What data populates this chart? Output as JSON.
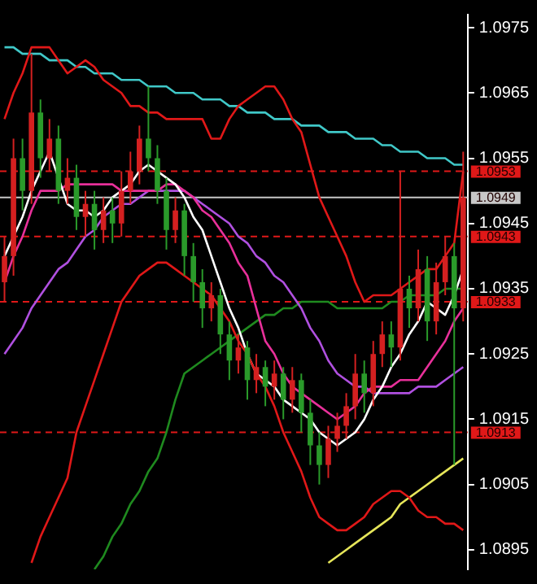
{
  "chart_data": {
    "type": "candlestick",
    "categories": [
      null,
      null,
      null,
      null,
      null,
      null,
      null,
      null,
      null,
      null,
      null,
      null,
      null,
      null,
      null,
      null,
      null,
      null,
      null,
      null,
      null,
      null,
      null,
      null,
      null,
      null,
      null,
      null,
      null,
      null,
      null,
      null,
      null,
      null,
      null,
      null,
      null,
      null,
      null,
      null,
      null,
      null,
      null,
      null,
      null,
      null,
      null,
      null,
      null,
      null,
      null,
      null
    ],
    "ohlc": [
      [
        1.0936,
        1.0943,
        1.0933,
        1.094
      ],
      [
        1.094,
        1.0958,
        1.0937,
        1.0955
      ],
      [
        1.0955,
        1.0958,
        1.0947,
        1.095
      ],
      [
        1.095,
        1.0971,
        1.0948,
        1.0962
      ],
      [
        1.0962,
        1.0964,
        1.0952,
        1.0955
      ],
      [
        1.0955,
        1.0961,
        1.0953,
        1.0958
      ],
      [
        1.0958,
        1.096,
        1.0948,
        1.095
      ],
      [
        1.095,
        1.0955,
        1.0948,
        1.0952
      ],
      [
        1.0952,
        1.0954,
        1.0944,
        1.0946
      ],
      [
        1.0946,
        1.095,
        1.0943,
        1.0948
      ],
      [
        1.0948,
        1.095,
        1.0941,
        1.0944
      ],
      [
        1.0944,
        1.0949,
        1.0942,
        1.0947
      ],
      [
        1.0947,
        1.0949,
        1.0942,
        1.0945
      ],
      [
        1.0945,
        1.0953,
        1.0943,
        1.095
      ],
      [
        1.095,
        1.0956,
        1.0948,
        1.0953
      ],
      [
        1.0953,
        1.096,
        1.0951,
        1.0958
      ],
      [
        1.0958,
        1.0966,
        1.0953,
        1.0955
      ],
      [
        1.0955,
        1.0957,
        1.0948,
        1.095
      ],
      [
        1.095,
        1.0952,
        1.0941,
        1.0944
      ],
      [
        1.0944,
        1.0949,
        1.0942,
        1.0947
      ],
      [
        1.0947,
        1.0948,
        1.0937,
        1.094
      ],
      [
        1.094,
        1.0942,
        1.0933,
        1.0936
      ],
      [
        1.0936,
        1.0938,
        1.0929,
        1.0932
      ],
      [
        1.0932,
        1.0936,
        1.093,
        1.0934
      ],
      [
        1.0934,
        1.0935,
        1.0925,
        1.0928
      ],
      [
        1.0928,
        1.093,
        1.0921,
        1.0924
      ],
      [
        1.0924,
        1.0928,
        1.0922,
        1.0926
      ],
      [
        1.0926,
        1.0927,
        1.0918,
        1.0921
      ],
      [
        1.0921,
        1.0925,
        1.0919,
        1.0923
      ],
      [
        1.0923,
        1.0924,
        1.0917,
        1.092
      ],
      [
        1.092,
        1.0924,
        1.0918,
        1.0922
      ],
      [
        1.0922,
        1.0923,
        1.0915,
        1.0918
      ],
      [
        1.0918,
        1.0923,
        1.0916,
        1.0921
      ],
      [
        1.0921,
        1.0922,
        1.0913,
        1.0916
      ],
      [
        1.0916,
        1.0918,
        1.0908,
        1.0911
      ],
      [
        1.0911,
        1.0913,
        1.0905,
        1.0908
      ],
      [
        1.0908,
        1.0914,
        1.0906,
        1.0912
      ],
      [
        1.0912,
        1.0916,
        1.091,
        1.0914
      ],
      [
        1.0914,
        1.0919,
        1.0912,
        1.0917
      ],
      [
        1.0917,
        1.0925,
        1.0915,
        1.0922
      ],
      [
        1.0922,
        1.0924,
        1.0916,
        1.0919
      ],
      [
        1.0919,
        1.0927,
        1.0917,
        1.0925
      ],
      [
        1.0925,
        1.093,
        1.0923,
        1.0928
      ],
      [
        1.0928,
        1.093,
        1.0923,
        1.0926
      ],
      [
        1.0926,
        1.0953,
        1.0924,
        1.0935
      ],
      [
        1.0935,
        1.0937,
        1.0929,
        1.0932
      ],
      [
        1.0932,
        1.0941,
        1.093,
        1.0938
      ],
      [
        1.0938,
        1.094,
        1.0927,
        1.093
      ],
      [
        1.093,
        1.0939,
        1.0928,
        1.0936
      ],
      [
        1.0936,
        1.0943,
        1.0934,
        1.094
      ],
      [
        1.094,
        1.0942,
        1.0908,
        1.0932
      ],
      [
        1.0932,
        1.0956,
        1.093,
        1.0949
      ]
    ],
    "colors": [
      "#d42020",
      "#d42020",
      "#2a9a2a",
      "#d42020",
      "#2a9a2a",
      "#d42020",
      "#2a9a2a",
      "#d42020",
      "#2a9a2a",
      "#d42020",
      "#2a9a2a",
      "#d42020",
      "#2a9a2a",
      "#d42020",
      "#d42020",
      "#d42020",
      "#2a9a2a",
      "#2a9a2a",
      "#2a9a2a",
      "#d42020",
      "#2a9a2a",
      "#2a9a2a",
      "#2a9a2a",
      "#d42020",
      "#2a9a2a",
      "#2a9a2a",
      "#d42020",
      "#2a9a2a",
      "#d42020",
      "#2a9a2a",
      "#d42020",
      "#2a9a2a",
      "#d42020",
      "#2a9a2a",
      "#2a9a2a",
      "#2a9a2a",
      "#d42020",
      "#d42020",
      "#d42020",
      "#d42020",
      "#2a9a2a",
      "#d42020",
      "#d42020",
      "#2a9a2a",
      "#d42020",
      "#2a9a2a",
      "#d42020",
      "#2a9a2a",
      "#d42020",
      "#d42020",
      "#2a9a2a",
      "#d42020"
    ],
    "ylim": [
      1.0892,
      1.0977
    ],
    "yticks": [
      1.0975,
      1.0965,
      1.0955,
      1.0945,
      1.0935,
      1.0925,
      1.0915,
      1.0905,
      1.0895
    ],
    "tick_labels": "y",
    "grid": false,
    "legend": false,
    "marker": "none",
    "series": [
      {
        "type": "line",
        "color": "#e01818",
        "values": [
          1.0961,
          1.0965,
          1.0968,
          1.0972,
          1.0972,
          1.0972,
          1.097,
          1.0968,
          1.0969,
          1.097,
          1.0969,
          1.0967,
          1.0966,
          1.0965,
          1.0963,
          1.0963,
          1.0962,
          1.0962,
          1.0961,
          1.0961,
          1.0961,
          1.0961,
          1.0961,
          1.0958,
          1.0958,
          1.0961,
          1.0963,
          1.0964,
          1.0965,
          1.0966,
          1.0966,
          1.0964,
          1.0961,
          1.0959,
          1.0954,
          1.0949,
          1.0946,
          1.0943,
          1.094,
          1.0936,
          1.0933,
          1.0934,
          1.0934,
          1.0934,
          1.0935,
          1.0936,
          1.0937,
          1.0938,
          1.0938,
          1.094,
          1.0942,
          1.0953
        ]
      },
      {
        "type": "line",
        "color": "#e01818",
        "values": [
          null,
          null,
          null,
          1.0893,
          1.0897,
          1.09,
          1.0903,
          1.0906,
          1.0913,
          1.0917,
          1.0921,
          1.0925,
          1.0929,
          1.0933,
          1.0935,
          1.0937,
          1.0938,
          1.0939,
          1.0939,
          1.0938,
          1.0937,
          1.0936,
          1.0935,
          1.0934,
          1.0932,
          1.093,
          1.0927,
          1.0925,
          1.0922,
          1.092,
          1.0917,
          1.0913,
          1.091,
          1.0907,
          1.0903,
          1.09,
          1.0899,
          1.0898,
          1.0898,
          1.0899,
          1.09,
          1.0902,
          1.0903,
          1.0904,
          1.0904,
          1.0903,
          1.0901,
          1.09,
          1.09,
          1.0899,
          1.0899,
          1.0898
        ]
      },
      {
        "type": "line",
        "color": "#ffffff",
        "values": [
          1.094,
          1.0943,
          1.0946,
          1.095,
          1.0953,
          1.0956,
          1.0952,
          1.0948,
          1.0947,
          1.0947,
          1.0946,
          1.0947,
          1.0949,
          1.095,
          1.0951,
          1.0953,
          1.0954,
          1.0953,
          1.0952,
          1.0951,
          1.0949,
          1.0946,
          1.0944,
          1.094,
          1.0936,
          1.0932,
          1.0929,
          1.0925,
          1.0922,
          1.0921,
          1.092,
          1.0918,
          1.0917,
          1.0916,
          1.0915,
          1.0913,
          1.0912,
          1.0911,
          1.0912,
          1.0913,
          1.0915,
          1.0918,
          1.092,
          1.0923,
          1.0925,
          1.0928,
          1.093,
          1.0933,
          1.0932,
          1.0931,
          1.0934,
          1.0938
        ]
      },
      {
        "type": "line",
        "color": "#e8309a",
        "values": [
          1.0936,
          1.094,
          1.0943,
          1.0947,
          1.095,
          1.095,
          1.095,
          1.0951,
          1.0951,
          1.0951,
          1.0951,
          1.0951,
          1.0951,
          1.095,
          1.095,
          1.095,
          1.095,
          1.095,
          1.0951,
          1.0951,
          1.095,
          1.0949,
          1.0947,
          1.0946,
          1.0944,
          1.0942,
          1.0939,
          1.0937,
          1.0932,
          1.0927,
          1.0925,
          1.0922,
          1.092,
          1.0919,
          1.0918,
          1.0917,
          1.0916,
          1.0915,
          1.0916,
          1.0917,
          1.0919,
          1.092,
          1.092,
          1.092,
          1.0921,
          1.0921,
          1.0921,
          1.0923,
          1.0925,
          1.0927,
          1.093,
          1.0932
        ]
      },
      {
        "type": "line",
        "color": "#b050e0",
        "values": [
          1.0925,
          1.0927,
          1.0929,
          1.0932,
          1.0934,
          1.0936,
          1.0938,
          1.0939,
          1.0941,
          1.0943,
          1.0944,
          1.0946,
          1.0947,
          1.0948,
          1.0948,
          1.0949,
          1.095,
          1.095,
          1.095,
          1.095,
          1.095,
          1.0949,
          1.0948,
          1.0947,
          1.0946,
          1.0945,
          1.0943,
          1.0942,
          1.094,
          1.0939,
          1.0937,
          1.0936,
          1.0934,
          1.0932,
          1.0929,
          1.0927,
          1.0924,
          1.0922,
          1.0921,
          1.092,
          1.092,
          1.0919,
          1.0919,
          1.0919,
          1.0919,
          1.0919,
          1.092,
          1.092,
          1.092,
          1.0921,
          1.0922,
          1.0923
        ]
      },
      {
        "type": "line",
        "color": "#1f8a1f",
        "values": [
          null,
          null,
          null,
          null,
          null,
          null,
          null,
          null,
          null,
          null,
          1.0892,
          1.0894,
          1.0897,
          1.0899,
          1.0902,
          1.0904,
          1.0907,
          1.0909,
          1.0913,
          1.0918,
          1.0922,
          1.0923,
          1.0924,
          1.0925,
          1.0926,
          1.0927,
          1.0928,
          1.0929,
          1.093,
          1.0931,
          1.0931,
          1.0932,
          1.0932,
          1.0933,
          1.0933,
          1.0933,
          1.0933,
          1.0932,
          1.0932,
          1.0932,
          1.0932,
          1.0932,
          1.0932,
          1.0933,
          1.0933,
          1.0934,
          1.0934,
          1.0934,
          1.0934,
          1.0935,
          1.0935,
          1.0935
        ]
      },
      {
        "type": "line",
        "color": "#e6e65a",
        "values": [
          null,
          null,
          null,
          null,
          null,
          null,
          null,
          null,
          null,
          null,
          null,
          null,
          null,
          null,
          null,
          null,
          null,
          null,
          null,
          null,
          null,
          null,
          null,
          null,
          null,
          null,
          null,
          null,
          null,
          null,
          null,
          null,
          null,
          null,
          null,
          null,
          1.0893,
          1.0894,
          1.0895,
          1.0896,
          1.0897,
          1.0898,
          1.0899,
          1.09,
          1.0902,
          1.0903,
          1.0904,
          1.0905,
          1.0906,
          1.0907,
          1.0908,
          1.0909
        ]
      },
      {
        "type": "line",
        "color": "#40c8c8",
        "values": [
          1.0972,
          1.0972,
          1.0971,
          1.0971,
          1.0971,
          1.097,
          1.097,
          1.097,
          1.0969,
          1.0969,
          1.0968,
          1.0968,
          1.0968,
          1.0967,
          1.0967,
          1.0967,
          1.0966,
          1.0966,
          1.0966,
          1.0965,
          1.0965,
          1.0965,
          1.0964,
          1.0964,
          1.0964,
          1.0963,
          1.0963,
          1.0962,
          1.0962,
          1.0962,
          1.0961,
          1.0961,
          1.0961,
          1.096,
          1.096,
          1.096,
          1.0959,
          1.0959,
          1.0959,
          1.0958,
          1.0958,
          1.0958,
          1.0957,
          1.0957,
          1.0956,
          1.0956,
          1.0956,
          1.0955,
          1.0955,
          1.0955,
          1.0954,
          1.0954
        ]
      }
    ],
    "ref_lines": [
      {
        "axis": "y",
        "value": 1.0953,
        "label": "1.0953",
        "color": "#e01818",
        "line_style": "dashed"
      },
      {
        "axis": "y",
        "value": 1.0949,
        "label": "1.0949",
        "color": "#c8c8c8",
        "line_style": "solid"
      },
      {
        "axis": "y",
        "value": 1.0943,
        "label": "1.0943",
        "color": "#e01818",
        "line_style": "dashed"
      },
      {
        "axis": "y",
        "value": 1.0933,
        "label": "1.0933",
        "color": "#e01818",
        "line_style": "dashed"
      },
      {
        "axis": "y",
        "value": 1.0913,
        "label": "1.0913",
        "color": "#e01818",
        "line_style": "dashed"
      }
    ]
  }
}
